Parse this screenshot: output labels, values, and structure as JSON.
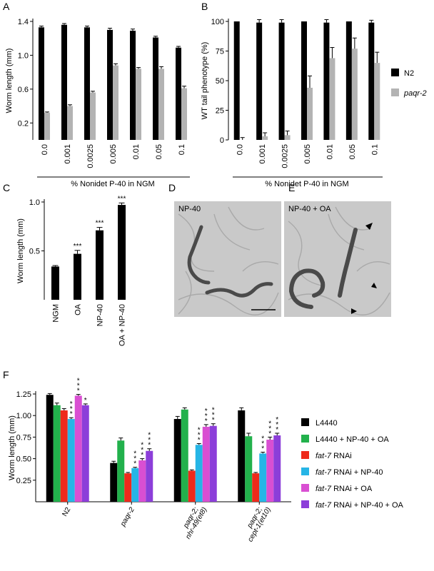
{
  "panel_letters": {
    "a": "A",
    "b": "B",
    "c": "C",
    "d": "D",
    "e": "E",
    "f": "F"
  },
  "photos": {
    "d_label": "NP-40",
    "e_label": "NP-40 + OA"
  },
  "colors": {
    "n2": "#000000",
    "paqr2": "#b3b3b3",
    "l4440": "#000000",
    "l4440_np40_oa": "#22b14c",
    "fat7": "#ee2a1b",
    "fat7_np40": "#26b5e6",
    "fat7_oa": "#d94fd2",
    "fat7_np40_oa": "#8c3ed9"
  },
  "chart_data": [
    {
      "panel": "A",
      "type": "bar",
      "categories": [
        "0.0",
        "0.001",
        "0.0025",
        "0.005",
        "0.01",
        "0.05",
        "0.1"
      ],
      "xlabel": "% Nonidet P-40 in NGM",
      "ylabel": "Worm length (mm)",
      "ylim": [
        0,
        1.4
      ],
      "yticks": [
        "0.2",
        "0.6",
        "1.0",
        "1.4"
      ],
      "series": [
        {
          "key": "n2",
          "values": [
            1.33,
            1.36,
            1.33,
            1.3,
            1.29,
            1.21,
            1.09
          ],
          "errors": [
            0.015,
            0.015,
            0.015,
            0.02,
            0.02,
            0.015,
            0.015
          ]
        },
        {
          "key": "paqr2",
          "values": [
            0.32,
            0.4,
            0.56,
            0.88,
            0.84,
            0.84,
            0.61
          ],
          "errors": [
            0.01,
            0.015,
            0.015,
            0.02,
            0.015,
            0.025,
            0.025
          ]
        }
      ]
    },
    {
      "panel": "B",
      "type": "bar",
      "categories": [
        "0.0",
        "0.001",
        "0.0025",
        "0.005",
        "0.01",
        "0.05",
        "0.1"
      ],
      "xlabel": "% Nonidet P-40 in NGM",
      "ylabel": "WT tail phenotype (%)",
      "ylim": [
        0,
        100
      ],
      "yticks": [
        "0",
        "25",
        "50",
        "75",
        "100"
      ],
      "legend": [
        {
          "key": "n2",
          "label": "N2"
        },
        {
          "key": "paqr2",
          "label": "paqr-2"
        }
      ],
      "legend_position": "right",
      "series": [
        {
          "key": "n2",
          "values": [
            100,
            99,
            99,
            100,
            99,
            100,
            99
          ],
          "errors": [
            0,
            2.5,
            2.5,
            0,
            2.5,
            0,
            2
          ]
        },
        {
          "key": "paqr2",
          "values": [
            0,
            3,
            4,
            44,
            69,
            77,
            65
          ],
          "errors": [
            2,
            3,
            3.5,
            10,
            9,
            9,
            9
          ]
        }
      ]
    },
    {
      "panel": "C",
      "type": "bar",
      "categories": [
        "NGM",
        "OA",
        "NP-40",
        "OA + NP-40"
      ],
      "ylabel": "Worm length (mm)",
      "ylim": [
        0,
        1.0
      ],
      "yticks": [
        "0.5",
        "1.0"
      ],
      "values": [
        0.34,
        0.47,
        0.71,
        0.97
      ],
      "errors": [
        0.01,
        0.035,
        0.03,
        0.02
      ],
      "annotations": [
        "",
        "***",
        "***",
        "***"
      ]
    },
    {
      "panel": "F",
      "type": "bar",
      "groups": [
        "N2",
        "paqr-2",
        "paqr-2;\nnhr-49(et8)",
        "paqr-2;\ncept-1(et10)"
      ],
      "group_italic": [
        false,
        true,
        true,
        true
      ],
      "ylabel": "Worm length (mm)",
      "ylim": [
        0,
        1.25
      ],
      "yticks": [
        "0.25",
        "0.50",
        "0.75",
        "1.00",
        "1.25"
      ],
      "legend": [
        {
          "key": "l4440",
          "label": "L4440",
          "italic_prefix": ""
        },
        {
          "key": "l4440_np40_oa",
          "label": "L4440 + NP-40 + OA",
          "italic_prefix": ""
        },
        {
          "key": "fat7",
          "label": " RNAi",
          "italic_prefix": "fat-7"
        },
        {
          "key": "fat7_np40",
          "label": " RNAi + NP-40",
          "italic_prefix": "fat-7"
        },
        {
          "key": "fat7_oa",
          "label": " RNAi + OA",
          "italic_prefix": "fat-7"
        },
        {
          "key": "fat7_np40_oa",
          "label": " RNAi + NP-40 + OA",
          "italic_prefix": "fat-7"
        }
      ],
      "legend_position": "right",
      "series": [
        {
          "key": "l4440",
          "values": [
            1.24,
            0.45,
            0.96,
            1.06
          ],
          "errors": [
            0.015,
            0.02,
            0.03,
            0.03
          ]
        },
        {
          "key": "l4440_np40_oa",
          "values": [
            1.12,
            0.71,
            1.07,
            0.76
          ],
          "errors": [
            0.025,
            0.03,
            0.02,
            0.035
          ]
        },
        {
          "key": "fat7",
          "values": [
            1.06,
            0.33,
            0.36,
            0.33
          ],
          "errors": [
            0.02,
            0.01,
            0.01,
            0.01
          ]
        },
        {
          "key": "fat7_np40",
          "values": [
            0.96,
            0.39,
            0.66,
            0.56
          ],
          "errors": [
            0.015,
            0.01,
            0.015,
            0.015
          ]
        },
        {
          "key": "fat7_oa",
          "values": [
            1.23,
            0.48,
            0.87,
            0.72
          ],
          "errors": [
            0.015,
            0.02,
            0.025,
            0.03
          ]
        },
        {
          "key": "fat7_np40_oa",
          "values": [
            1.12,
            0.59,
            0.88,
            0.77
          ],
          "errors": [
            0.015,
            0.025,
            0.025,
            0.025
          ]
        }
      ],
      "significance": [
        [
          "",
          "",
          "",
          "***",
          "***",
          "*"
        ],
        [
          "",
          "",
          "",
          "***",
          "***",
          "***"
        ],
        [
          "",
          "",
          "",
          "***",
          "***",
          "***"
        ],
        [
          "",
          "",
          "",
          "***",
          "***",
          "***"
        ]
      ]
    }
  ]
}
